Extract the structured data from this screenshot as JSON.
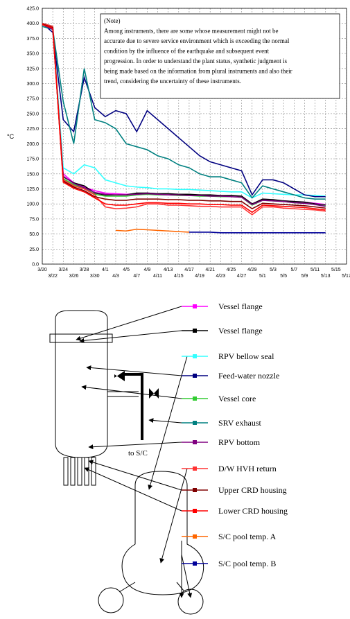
{
  "chart_data": {
    "type": "line",
    "y_label": "°C",
    "note": [
      "(Note)",
      "Among instruments, there are some whose measurement might not be",
      "accurate due to severe service environment which is exceeding the normal",
      "condition by the influence of the earthquake and subsequent event",
      "progression. In order to understand the plant status, synthetic judgment is",
      "being made based on the information from plural instruments and also their",
      "trend, considering the uncertainty of these instruments."
    ],
    "annotation": "to S/C",
    "categories": [
      "3/20",
      "3/22",
      "3/24",
      "3/26",
      "3/28",
      "3/30",
      "4/1",
      "4/3",
      "4/5",
      "4/7",
      "4/9",
      "4/11",
      "4/13",
      "4/15",
      "4/17",
      "4/19",
      "4/21",
      "4/23",
      "4/25",
      "4/27",
      "4/29",
      "5/1",
      "5/3",
      "5/5",
      "5/7",
      "5/9",
      "5/11",
      "5/13",
      "5/15",
      "5/17"
    ],
    "ylim": [
      0,
      425
    ],
    "yticks": [
      {
        "value": 0,
        "label": "0.0"
      },
      {
        "value": 25,
        "label": "25.0"
      },
      {
        "value": 50,
        "label": "50.0"
      },
      {
        "value": 75,
        "label": "75.0"
      },
      {
        "value": 100,
        "label": "100.0"
      },
      {
        "value": 125,
        "label": "125.0"
      },
      {
        "value": 150,
        "label": "150.0"
      },
      {
        "value": 175,
        "label": "175.0"
      },
      {
        "value": 200,
        "label": "200.0"
      },
      {
        "value": 225,
        "label": "225.0"
      },
      {
        "value": 250,
        "label": "250.0"
      },
      {
        "value": 275,
        "label": "275.0"
      },
      {
        "value": 300,
        "label": "300.0"
      },
      {
        "value": 325,
        "label": "325.0"
      },
      {
        "value": 350,
        "label": "350.0"
      },
      {
        "value": 375,
        "label": "375.0"
      },
      {
        "value": 400,
        "label": "400.0"
      },
      {
        "value": 425,
        "label": "425.0"
      }
    ],
    "grid": true,
    "series": [
      {
        "name": "Vessel flange",
        "color": "#ff00ff",
        "values": [
          400,
          392,
          150,
          135,
          128,
          122,
          118,
          117,
          116,
          117,
          118,
          117,
          116,
          116,
          115,
          115,
          114,
          114,
          113,
          112,
          100,
          107,
          106,
          105,
          104,
          103,
          101,
          99,
          null,
          null
        ]
      },
      {
        "name": "Vessel flange",
        "color": "#000000",
        "values": [
          400,
          395,
          145,
          135,
          130,
          118,
          115,
          115,
          115,
          118,
          118,
          117,
          117,
          116,
          116,
          115,
          115,
          114,
          114,
          113,
          100,
          108,
          107,
          105,
          104,
          103,
          100,
          98,
          null,
          null
        ]
      },
      {
        "name": "RPV bellow seal",
        "color": "#33ffff",
        "values": [
          400,
          395,
          160,
          150,
          165,
          160,
          140,
          135,
          130,
          128,
          127,
          125,
          125,
          124,
          124,
          123,
          122,
          121,
          120,
          120,
          110,
          118,
          117,
          116,
          115,
          115,
          114,
          113,
          null,
          null
        ]
      },
      {
        "name": "Feed-water nozzle",
        "color": "#000080",
        "values": [
          400,
          385,
          240,
          220,
          310,
          260,
          245,
          255,
          250,
          220,
          255,
          240,
          225,
          210,
          195,
          180,
          170,
          165,
          160,
          155,
          115,
          140,
          140,
          135,
          125,
          115,
          112,
          112,
          null,
          null
        ]
      },
      {
        "name": "Vessel core",
        "color": "#33cc33",
        "values": [
          398,
          392,
          142,
          132,
          126,
          116,
          113,
          113,
          113,
          115,
          116,
          115,
          115,
          114,
          114,
          113,
          113,
          112,
          112,
          111,
          98,
          106,
          105,
          104,
          102,
          101,
          99,
          97,
          null,
          null
        ]
      },
      {
        "name": "SRV exhaust",
        "color": "#008080",
        "values": [
          395,
          390,
          270,
          200,
          325,
          240,
          235,
          225,
          200,
          195,
          190,
          180,
          175,
          165,
          160,
          150,
          145,
          145,
          140,
          135,
          110,
          130,
          125,
          120,
          115,
          110,
          108,
          108,
          null,
          null
        ]
      },
      {
        "name": "RPV bottom",
        "color": "#800080",
        "values": [
          398,
          390,
          146,
          134,
          127,
          119,
          116,
          115,
          115,
          116,
          117,
          116,
          115,
          115,
          114,
          114,
          113,
          113,
          112,
          111,
          99,
          106,
          105,
          104,
          102,
          101,
          99,
          96,
          null,
          null
        ]
      },
      {
        "name": "D/W HVH return",
        "color": "#ff3333",
        "values": [
          400,
          395,
          140,
          130,
          125,
          115,
          95,
          92,
          93,
          95,
          100,
          100,
          98,
          98,
          97,
          96,
          96,
          95,
          95,
          95,
          82,
          95,
          95,
          93,
          92,
          91,
          90,
          88,
          null,
          null
        ]
      },
      {
        "name": "Upper CRD housing",
        "color": "#800000",
        "values": [
          399,
          393,
          138,
          128,
          122,
          112,
          108,
          106,
          106,
          108,
          108,
          108,
          107,
          107,
          106,
          106,
          105,
          105,
          104,
          104,
          92,
          101,
          100,
          99,
          98,
          97,
          95,
          93,
          null,
          null
        ]
      },
      {
        "name": "Lower CRD housing",
        "color": "#ff0000",
        "values": [
          398,
          392,
          136,
          126,
          120,
          110,
          100,
          98,
          98,
          100,
          102,
          102,
          101,
          101,
          100,
          100,
          99,
          99,
          98,
          98,
          86,
          98,
          97,
          96,
          95,
          94,
          92,
          90,
          null,
          null
        ]
      },
      {
        "name": "S/C pool temp. A",
        "color": "#ff6600",
        "values": [
          null,
          null,
          null,
          null,
          null,
          null,
          null,
          56,
          55,
          58,
          57,
          56,
          55,
          54,
          53,
          null,
          null,
          null,
          null,
          null,
          null,
          null,
          null,
          null,
          null,
          null,
          null,
          null,
          null,
          null
        ]
      },
      {
        "name": "S/C pool temp. B",
        "color": "#000099",
        "values": [
          null,
          null,
          null,
          null,
          null,
          null,
          null,
          null,
          null,
          null,
          null,
          null,
          null,
          null,
          53,
          53,
          53,
          52,
          52,
          52,
          52,
          52,
          52,
          52,
          52,
          52,
          52,
          52,
          null,
          null
        ]
      }
    ]
  }
}
